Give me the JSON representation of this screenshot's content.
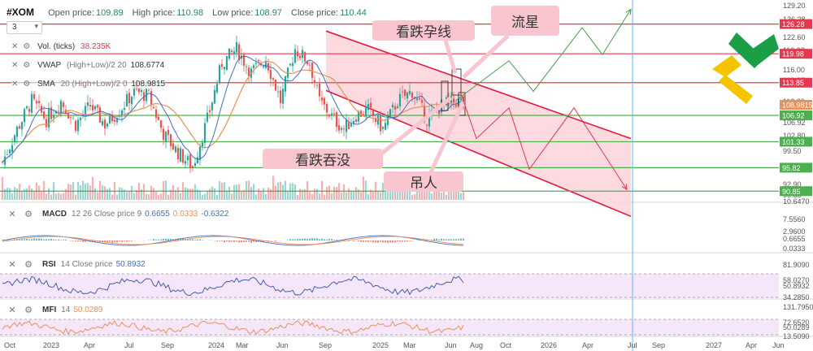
{
  "header": {
    "symbol": "#XOM",
    "open_label": "Open price:",
    "open_value": "109.89",
    "high_label": "High price:",
    "high_value": "110.98",
    "low_label": "Low price:",
    "low_value": "108.97",
    "close_label": "Close price:",
    "close_value": "110.44",
    "timeframe": "3"
  },
  "overlays": {
    "vol": {
      "name": "Vol. (ticks)",
      "value": "38.235K"
    },
    "vwap": {
      "name": "VWAP",
      "params": "(High+Low)/2 20",
      "value": "108.6774"
    },
    "sma": {
      "name": "SMA",
      "params": "20 (High+Low)/2 0",
      "value": "108.9815"
    }
  },
  "panes": {
    "macd": {
      "name": "MACD",
      "params": "12 26 Close price 9",
      "v1": "0.6655",
      "v2": "0.0333",
      "v3": "-0.6322"
    },
    "rsi": {
      "name": "RSI",
      "params": "14 Close price",
      "value": "50.8932"
    },
    "mfi": {
      "name": "MFI",
      "params": "14",
      "value": "50.0289"
    }
  },
  "annotations": {
    "bearish_harami": "看跌孕线",
    "shooting_star": "流星",
    "bearish_engulfing": "看跌吞没",
    "hanging_man": "吊人"
  },
  "colors": {
    "up": "#26a69a",
    "down": "#ef5350",
    "level_line": "#e53950",
    "support_line": "#4caf50",
    "channel": "#e0193d",
    "channel_fill": "#fbd3da",
    "projection_up": "#43a047",
    "projection_down": "#e53950",
    "sma": "#e9915a",
    "vwap": "#3f6fc6",
    "callout": "#f9c6cf",
    "vertical_marker": "#64b5f6"
  },
  "chart_data": {
    "type": "candlestick",
    "title": "#XOM",
    "y_range": [
      89.0,
      130.0
    ],
    "price_axis_labels": [
      "129.20",
      "126.28",
      "122.60",
      "119.98",
      "116.00",
      "113.85",
      "112.80",
      "108.9815",
      "108.6774",
      "106.92",
      "102.80",
      "101.33",
      "99.50",
      "95.82",
      "92.90",
      "90.85",
      "10.6470"
    ],
    "horizontal_levels": [
      {
        "value": 126.28,
        "color": "level"
      },
      {
        "value": 119.98,
        "color": "level"
      },
      {
        "value": 113.85,
        "color": "level"
      },
      {
        "value": 106.92,
        "color": "support"
      },
      {
        "value": 101.33,
        "color": "support"
      },
      {
        "value": 95.82,
        "color": "support"
      },
      {
        "value": 90.85,
        "color": "support"
      }
    ],
    "price_tags": [
      {
        "text": "126.28",
        "kind": "level"
      },
      {
        "text": "119.98",
        "kind": "level"
      },
      {
        "text": "113.85",
        "kind": "level"
      },
      {
        "text": "108.9815",
        "kind": "sma"
      },
      {
        "text": "108.6774",
        "kind": "vwap"
      },
      {
        "text": "106.92",
        "kind": "support"
      },
      {
        "text": "101.33",
        "kind": "support"
      },
      {
        "text": "95.82",
        "kind": "support"
      },
      {
        "text": "90.85",
        "kind": "support"
      }
    ],
    "time_labels": [
      "Oct",
      "2023",
      "Apr",
      "Jul",
      "Sep",
      "2024",
      "Mar",
      "Jun",
      "Sep",
      "2025",
      "Mar",
      "Jun",
      "Aug",
      "Oct",
      "2026",
      "Apr",
      "Jul",
      "Sep",
      "2027",
      "Apr",
      "Jun"
    ],
    "candles_count": 190,
    "close_path": [
      [
        0,
        97
      ],
      [
        6,
        104
      ],
      [
        12,
        110
      ],
      [
        18,
        106
      ],
      [
        24,
        110
      ],
      [
        30,
        105
      ],
      [
        36,
        109
      ],
      [
        42,
        105
      ],
      [
        48,
        108
      ],
      [
        54,
        112
      ],
      [
        60,
        111
      ],
      [
        66,
        103
      ],
      [
        72,
        99
      ],
      [
        78,
        96
      ],
      [
        84,
        106
      ],
      [
        90,
        118
      ],
      [
        96,
        121
      ],
      [
        102,
        116
      ],
      [
        108,
        119
      ],
      [
        114,
        110
      ],
      [
        120,
        121
      ],
      [
        126,
        118
      ],
      [
        130,
        110
      ],
      [
        136,
        106
      ],
      [
        140,
        104
      ],
      [
        145,
        107
      ],
      [
        150,
        108
      ],
      [
        156,
        104
      ],
      [
        162,
        110
      ],
      [
        168,
        112
      ],
      [
        174,
        106
      ],
      [
        180,
        109
      ],
      [
        186,
        109.89
      ]
    ],
    "channel": {
      "upper": [
        [
          401,
          124.8
        ],
        [
          776,
          102.0
        ]
      ],
      "lower": [
        [
          401,
          112.2
        ],
        [
          776,
          85.5
        ]
      ]
    },
    "projection_up": [
      [
        560,
        110.0
      ],
      [
        626,
        118.5
      ],
      [
        656,
        112.0
      ],
      [
        716,
        125.5
      ],
      [
        741,
        119.8
      ],
      [
        776,
        129.4
      ]
    ],
    "projection_down": [
      [
        566,
        112.0
      ],
      [
        586,
        102.0
      ],
      [
        626,
        108.5
      ],
      [
        651,
        95.5
      ],
      [
        706,
        108.5
      ],
      [
        771,
        91.2
      ]
    ],
    "sub_indicators": {
      "macd": {
        "axis": [
          "7.5560",
          "2.9600",
          "0.6655",
          "0.0333"
        ]
      },
      "rsi": {
        "axis": [
          "81.9090",
          "58.0270",
          "50.8932",
          "34.2850"
        ],
        "band_color": "#f6e6fa"
      },
      "mfi": {
        "axis": [
          "131.7950",
          "72.6520",
          "50.0289",
          "13.5090"
        ],
        "band_color": "#f6e6fa"
      }
    }
  }
}
